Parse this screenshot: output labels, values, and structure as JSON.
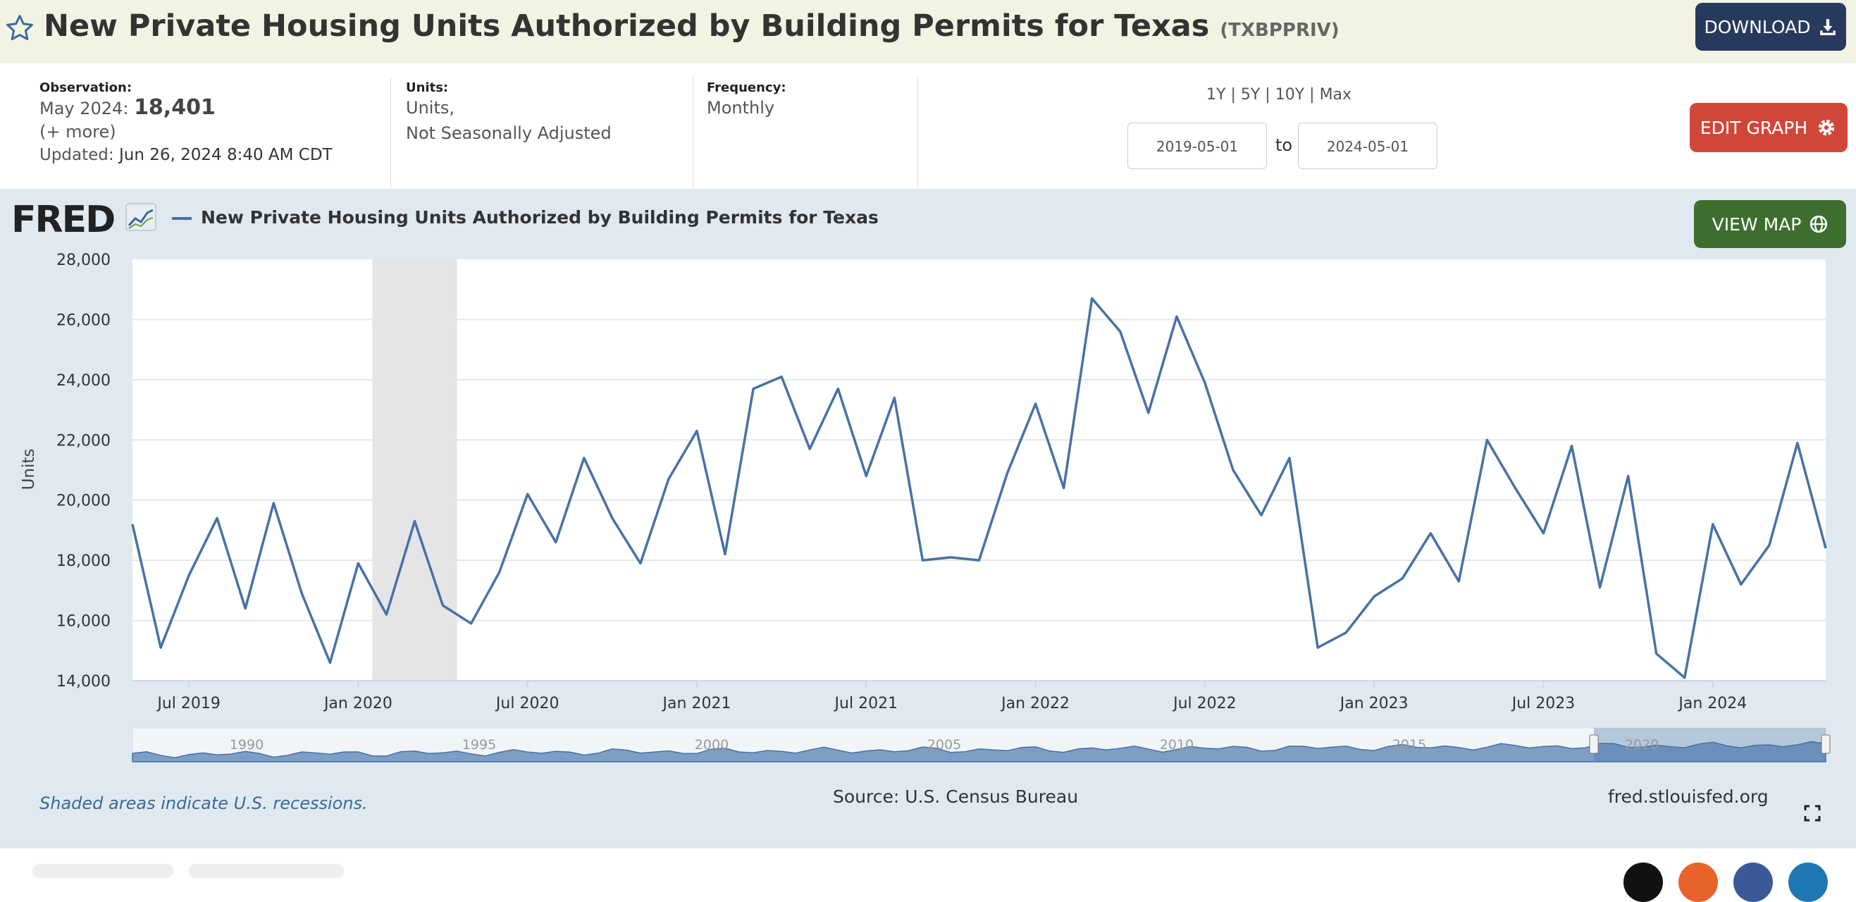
{
  "header": {
    "title": "New Private Housing Units Authorized by Building Permits for Texas",
    "series_id": "(TXBPPRIV)",
    "download_label": "DOWNLOAD"
  },
  "observation": {
    "label": "Observation:",
    "period": "May 2024:",
    "value": "18,401",
    "more": "(+ more)",
    "updated_label": "Updated:",
    "updated": "Jun 26, 2024 8:40 AM CDT"
  },
  "units": {
    "label": "Units:",
    "line1": "Units,",
    "line2": "Not Seasonally Adjusted"
  },
  "frequency": {
    "label": "Frequency:",
    "value": "Monthly"
  },
  "range": {
    "options": [
      "1Y",
      "5Y",
      "10Y",
      "Max"
    ],
    "separator": "|",
    "start": "2019-05-01",
    "to": "to",
    "end": "2024-05-01"
  },
  "buttons": {
    "edit_graph": "EDIT GRAPH",
    "view_map": "VIEW MAP"
  },
  "graph": {
    "logo": "FRED",
    "legend": "New Private Housing Units Authorized by Building Permits for Texas",
    "shaded_note": "Shaded areas indicate U.S. recessions.",
    "source": "Source: U.S. Census Bureau",
    "url": "fred.stlouisfed.org",
    "navigator_years": [
      "1990",
      "1995",
      "2000",
      "2005",
      "2010",
      "2015",
      "2020"
    ]
  },
  "colors": {
    "line": "#4572a7",
    "recession": "#e5e5e5",
    "download": "#273a5e",
    "edit": "#d0473a",
    "map": "#3d6e2e"
  },
  "icons": [
    "star-icon",
    "download-icon",
    "gear-icon",
    "globe-icon",
    "chart-icon",
    "expand-icon"
  ],
  "chart_data": {
    "type": "line",
    "ylabel": "Units",
    "ylim": [
      14000,
      28000
    ],
    "yticks": [
      14000,
      16000,
      18000,
      20000,
      22000,
      24000,
      26000,
      28000
    ],
    "ytick_labels": [
      "14,000",
      "16,000",
      "18,000",
      "20,000",
      "22,000",
      "24,000",
      "26,000",
      "28,000"
    ],
    "xticks": [
      "2019-07",
      "2020-01",
      "2020-07",
      "2021-01",
      "2021-07",
      "2022-01",
      "2022-07",
      "2023-01",
      "2023-07",
      "2024-01"
    ],
    "xtick_labels": [
      "Jul 2019",
      "Jan 2020",
      "Jul 2020",
      "Jan 2021",
      "Jul 2021",
      "Jan 2022",
      "Jul 2022",
      "Jan 2023",
      "Jul 2023",
      "Jan 2024"
    ],
    "recession": {
      "start": "2020-02",
      "end": "2020-04"
    },
    "series": [
      {
        "name": "New Private Housing Units Authorized by Building Permits for Texas",
        "x": [
          "2019-05",
          "2019-06",
          "2019-07",
          "2019-08",
          "2019-09",
          "2019-10",
          "2019-11",
          "2019-12",
          "2020-01",
          "2020-02",
          "2020-03",
          "2020-04",
          "2020-05",
          "2020-06",
          "2020-07",
          "2020-08",
          "2020-09",
          "2020-10",
          "2020-11",
          "2020-12",
          "2021-01",
          "2021-02",
          "2021-03",
          "2021-04",
          "2021-05",
          "2021-06",
          "2021-07",
          "2021-08",
          "2021-09",
          "2021-10",
          "2021-11",
          "2021-12",
          "2022-01",
          "2022-02",
          "2022-03",
          "2022-04",
          "2022-05",
          "2022-06",
          "2022-07",
          "2022-08",
          "2022-09",
          "2022-10",
          "2022-11",
          "2022-12",
          "2023-01",
          "2023-02",
          "2023-03",
          "2023-04",
          "2023-05",
          "2023-06",
          "2023-07",
          "2023-08",
          "2023-09",
          "2023-10",
          "2023-11",
          "2023-12",
          "2024-01",
          "2024-02",
          "2024-03",
          "2024-04",
          "2024-05"
        ],
        "values": [
          19200,
          15100,
          17500,
          19400,
          16400,
          19900,
          16900,
          14600,
          17900,
          16200,
          19300,
          16500,
          15900,
          17600,
          20200,
          18600,
          21400,
          19400,
          17900,
          20700,
          22300,
          18200,
          23700,
          24100,
          21700,
          23700,
          20800,
          23400,
          18000,
          18100,
          18000,
          20900,
          23200,
          20400,
          26700,
          25600,
          22900,
          26100,
          23900,
          21000,
          19500,
          21400,
          15100,
          15600,
          16800,
          17400,
          18900,
          17300,
          22000,
          20400,
          18900,
          21800,
          17100,
          20800,
          14900,
          14100,
          19200,
          17200,
          18500,
          21900,
          18401
        ]
      }
    ]
  }
}
